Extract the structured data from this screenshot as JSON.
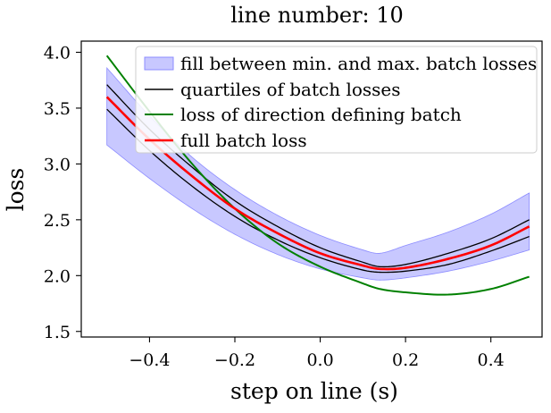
{
  "chart_data": {
    "type": "line",
    "title": "line number: 10",
    "xlabel": "step on line (s)",
    "ylabel": "loss",
    "xlim": [
      -0.56,
      0.52
    ],
    "ylim": [
      1.45,
      4.1
    ],
    "x_ticks": [
      -0.4,
      -0.2,
      0.0,
      0.2,
      0.4
    ],
    "x_tick_labels": [
      "−0.4",
      "−0.2",
      "0.0",
      "0.2",
      "0.4"
    ],
    "y_ticks": [
      1.5,
      2.0,
      2.5,
      3.0,
      3.5,
      4.0
    ],
    "y_tick_labels": [
      "1.5",
      "2.0",
      "2.5",
      "3.0",
      "3.5",
      "4.0"
    ],
    "grid": false,
    "legend_position": "top-right",
    "colors": {
      "fill": "#c8c8ff",
      "fill_edge": "#8c8cff",
      "quartiles": "#000000",
      "direction": "#008000",
      "full": "#ff0000"
    },
    "x": [
      -0.5,
      -0.4,
      -0.3,
      -0.2,
      -0.1,
      0.0,
      0.1,
      0.14,
      0.2,
      0.3,
      0.4,
      0.49
    ],
    "series": [
      {
        "name": "fill between min. and max. batch losses",
        "kind": "band",
        "lower": [
          3.17,
          2.87,
          2.6,
          2.37,
          2.19,
          2.06,
          1.98,
          1.96,
          1.98,
          2.04,
          2.13,
          2.23
        ],
        "upper": [
          3.86,
          3.43,
          3.06,
          2.77,
          2.54,
          2.36,
          2.23,
          2.2,
          2.27,
          2.39,
          2.55,
          2.74
        ]
      },
      {
        "name": "quartiles of batch losses",
        "kind": "quartiles",
        "lower": [
          3.49,
          3.12,
          2.8,
          2.53,
          2.32,
          2.16,
          2.05,
          2.03,
          2.04,
          2.1,
          2.22,
          2.35
        ],
        "upper": [
          3.71,
          3.31,
          2.97,
          2.67,
          2.44,
          2.25,
          2.12,
          2.08,
          2.1,
          2.2,
          2.33,
          2.5
        ]
      },
      {
        "name": "loss of direction defining batch",
        "kind": "line",
        "values": [
          3.97,
          3.47,
          3.0,
          2.6,
          2.29,
          2.08,
          1.93,
          1.88,
          1.85,
          1.83,
          1.88,
          1.99
        ]
      },
      {
        "name": "full batch loss",
        "kind": "line",
        "values": [
          3.6,
          3.22,
          2.89,
          2.6,
          2.38,
          2.2,
          2.09,
          2.06,
          2.07,
          2.15,
          2.27,
          2.44
        ]
      }
    ]
  }
}
